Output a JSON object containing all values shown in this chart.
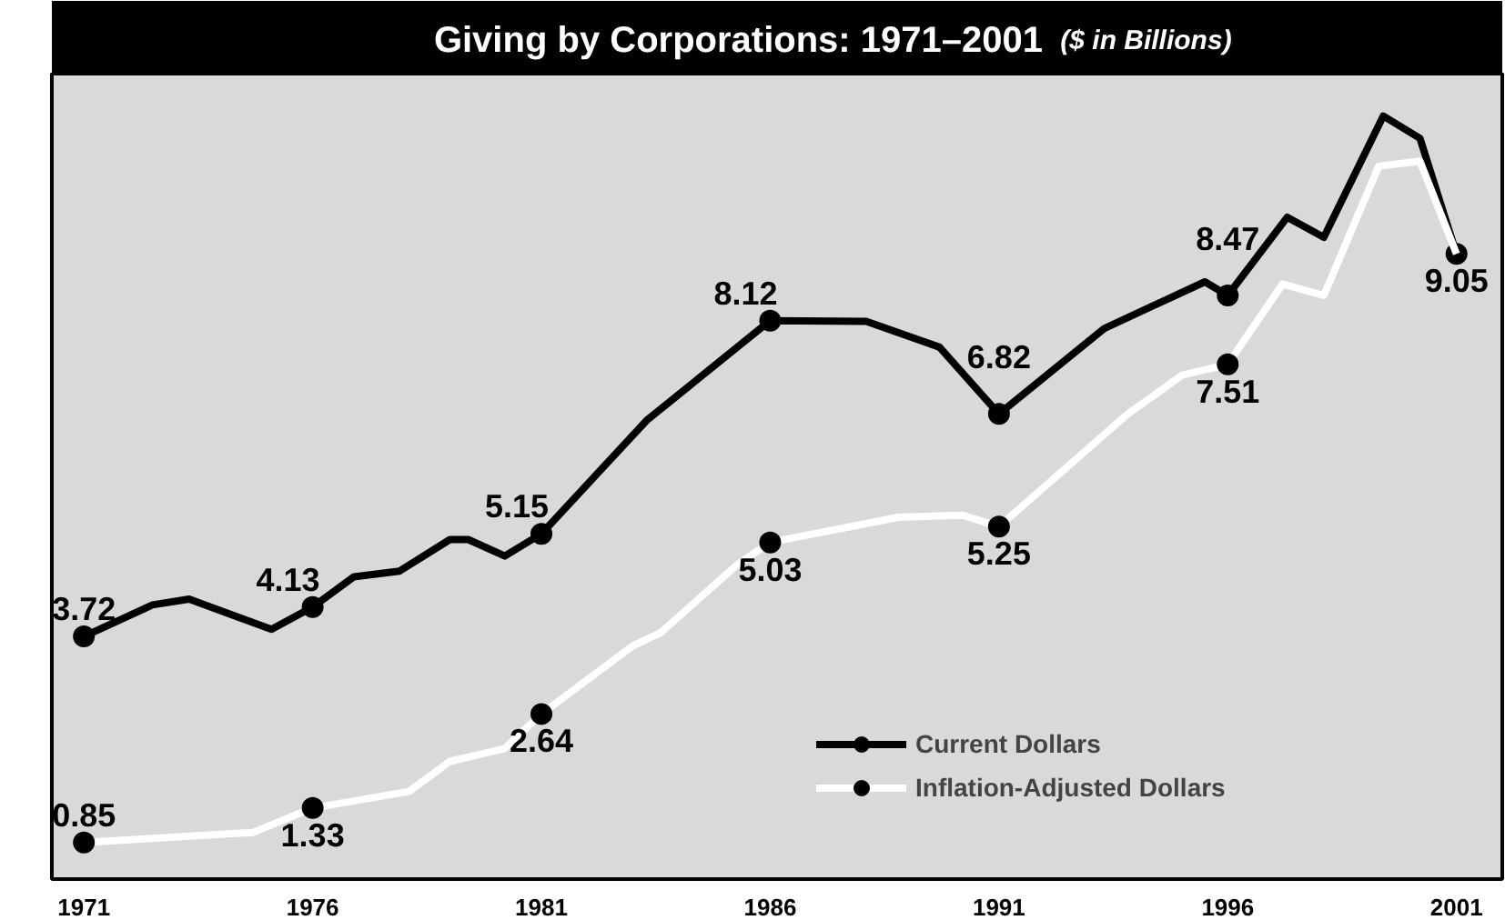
{
  "chart_data": {
    "type": "line",
    "title": "Giving by Corporations: 1971–2001",
    "subtitle": "($ in Billions)",
    "xlim": [
      1970.3,
      2002.0
    ],
    "xticks": [
      1971,
      1976,
      1981,
      1986,
      1991,
      1996,
      2001
    ],
    "ylim": [
      0.34,
      11.56
    ],
    "tick_labels": "x",
    "grid": false,
    "legend": "bottom right",
    "line_style": "solid",
    "series": [
      {
        "name": "Current Dollars",
        "color": "#000000",
        "x": [
          1971,
          1972.5,
          1973.3,
          1975.1,
          1976,
          1976.9,
          1977.9,
          1979.0,
          1979.4,
          1980.2,
          1981,
          1983.3,
          1986,
          1988.1,
          1989.7,
          1991,
          1993.3,
          1995.5,
          1996,
          1997.3,
          1998.1,
          1999.4,
          2000.2,
          2001
        ],
        "values": [
          3.72,
          4.16,
          4.24,
          3.82,
          4.13,
          4.55,
          4.63,
          5.07,
          5.07,
          4.84,
          5.15,
          6.73,
          8.12,
          8.11,
          7.75,
          6.82,
          8.01,
          8.66,
          8.47,
          9.56,
          9.28,
          10.97,
          10.66,
          9.05
        ],
        "value_labels": [
          "3.72",
          null,
          null,
          null,
          "4.13",
          null,
          null,
          null,
          null,
          null,
          "5.15",
          null,
          "8.12",
          null,
          null,
          "6.82",
          null,
          null,
          "8.47",
          null,
          null,
          null,
          null,
          "9.05"
        ]
      },
      {
        "name": "Inflation-Adjusted Dollars",
        "color": "#ffffff",
        "x": [
          1971,
          1974.7,
          1976,
          1978.1,
          1979.0,
          1980.2,
          1981,
          1983.0,
          1983.6,
          1985.3,
          1986,
          1988.8,
          1990.2,
          1991,
          1993.8,
          1995.0,
          1996,
          1997.2,
          1998.1,
          1999.3,
          2000.2,
          2001
        ],
        "values": [
          0.85,
          0.99,
          1.33,
          1.56,
          1.98,
          2.16,
          2.64,
          3.59,
          3.77,
          4.73,
          5.03,
          5.38,
          5.41,
          5.25,
          6.81,
          7.36,
          7.51,
          8.63,
          8.47,
          10.27,
          10.34,
          9.05
        ],
        "value_labels": [
          "0.85",
          null,
          "1.33",
          null,
          null,
          null,
          "2.64",
          null,
          null,
          null,
          "5.03",
          null,
          null,
          "5.25",
          null,
          null,
          "7.51",
          null,
          null,
          null,
          null,
          null
        ]
      }
    ]
  }
}
